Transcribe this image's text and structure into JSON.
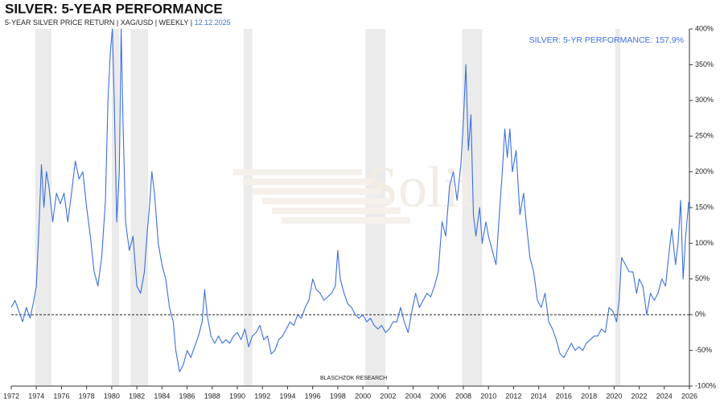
{
  "chart_data": {
    "type": "line",
    "title": "SILVER: 5-YEAR PERFORMANCE",
    "subtitle": "5-YEAR SILVER PRICE RETURN | XAG/USD | WEEKLY | ",
    "date": "12.12.2025",
    "annotation": "SILVER: 5-YR PERFORMANCE: 157,9%",
    "source": "BLASCHZOK  RESEARCH",
    "watermark": "Solit",
    "color": "#3b6fe0",
    "reference_line": 0,
    "shaded_periods": [
      [
        1973.9,
        1975.2
      ],
      [
        1980.0,
        1980.6
      ],
      [
        1981.5,
        1982.9
      ],
      [
        1990.5,
        1991.2
      ],
      [
        2000.2,
        2001.8
      ],
      [
        2007.9,
        2009.5
      ],
      [
        2020.1,
        2020.5
      ]
    ],
    "xlim": [
      1972,
      2026
    ],
    "xticks": [
      1972,
      1974,
      1976,
      1978,
      1980,
      1982,
      1984,
      1986,
      1988,
      1990,
      1992,
      1994,
      1996,
      1998,
      2000,
      2002,
      2004,
      2006,
      2008,
      2010,
      2012,
      2014,
      2016,
      2018,
      2020,
      2022,
      2024,
      2026
    ],
    "ylim": [
      -100,
      400
    ],
    "yticks": [
      {
        "value": -100,
        "label": "-100%"
      },
      {
        "value": -50,
        "label": "-50%"
      },
      {
        "value": 0,
        "label": "0%"
      },
      {
        "value": 50,
        "label": "50%"
      },
      {
        "value": 100,
        "label": "100%"
      },
      {
        "value": 150,
        "label": "150%"
      },
      {
        "value": 200,
        "label": "200%"
      },
      {
        "value": 250,
        "label": "250%"
      },
      {
        "value": 300,
        "label": "300%"
      },
      {
        "value": 350,
        "label": "350%"
      },
      {
        "value": 400,
        "label": "400%"
      }
    ],
    "x": [
      1972.0,
      1972.3,
      1972.6,
      1972.9,
      1973.2,
      1973.5,
      1973.8,
      1974.0,
      1974.2,
      1974.4,
      1974.6,
      1974.8,
      1975.0,
      1975.3,
      1975.6,
      1975.9,
      1976.2,
      1976.5,
      1976.8,
      1977.1,
      1977.4,
      1977.7,
      1978.0,
      1978.3,
      1978.6,
      1978.9,
      1979.2,
      1979.5,
      1979.7,
      1979.9,
      1980.05,
      1980.2,
      1980.4,
      1980.6,
      1980.75,
      1980.9,
      1981.1,
      1981.4,
      1981.7,
      1982.0,
      1982.3,
      1982.6,
      1982.8,
      1983.0,
      1983.2,
      1983.4,
      1983.7,
      1984.0,
      1984.3,
      1984.6,
      1984.9,
      1985.1,
      1985.4,
      1985.7,
      1986.0,
      1986.3,
      1986.6,
      1986.9,
      1987.2,
      1987.4,
      1987.6,
      1987.9,
      1988.2,
      1988.5,
      1988.8,
      1989.1,
      1989.4,
      1989.7,
      1990.0,
      1990.3,
      1990.6,
      1990.9,
      1991.2,
      1991.5,
      1991.8,
      1992.1,
      1992.4,
      1992.7,
      1993.0,
      1993.3,
      1993.6,
      1993.9,
      1994.2,
      1994.5,
      1994.8,
      1995.1,
      1995.4,
      1995.7,
      1996.0,
      1996.3,
      1996.6,
      1996.9,
      1997.2,
      1997.5,
      1997.8,
      1998.0,
      1998.2,
      1998.5,
      1998.8,
      1999.1,
      1999.4,
      1999.7,
      2000.0,
      2000.3,
      2000.6,
      2000.9,
      2001.2,
      2001.5,
      2001.8,
      2002.1,
      2002.4,
      2002.7,
      2003.0,
      2003.3,
      2003.6,
      2003.9,
      2004.2,
      2004.5,
      2004.8,
      2005.1,
      2005.4,
      2005.7,
      2006.0,
      2006.3,
      2006.6,
      2006.9,
      2007.2,
      2007.5,
      2007.8,
      2008.0,
      2008.2,
      2008.4,
      2008.6,
      2008.8,
      2009.0,
      2009.3,
      2009.5,
      2009.8,
      2010.0,
      2010.3,
      2010.6,
      2010.9,
      2011.1,
      2011.3,
      2011.5,
      2011.7,
      2011.9,
      2012.2,
      2012.5,
      2012.8,
      2013.0,
      2013.3,
      2013.6,
      2013.9,
      2014.2,
      2014.5,
      2014.8,
      2015.1,
      2015.4,
      2015.7,
      2016.0,
      2016.3,
      2016.6,
      2016.9,
      2017.2,
      2017.5,
      2017.8,
      2018.1,
      2018.4,
      2018.7,
      2019.0,
      2019.3,
      2019.6,
      2019.9,
      2020.2,
      2020.4,
      2020.6,
      2020.9,
      2021.2,
      2021.5,
      2021.8,
      2022.0,
      2022.3,
      2022.6,
      2022.9,
      2023.2,
      2023.5,
      2023.8,
      2024.1,
      2024.4,
      2024.6,
      2024.9,
      2025.1,
      2025.3,
      2025.5,
      2025.7,
      2025.95
    ],
    "values": [
      10,
      20,
      5,
      -10,
      10,
      -5,
      20,
      40,
      120,
      210,
      150,
      200,
      180,
      130,
      170,
      155,
      170,
      130,
      170,
      215,
      190,
      200,
      150,
      110,
      60,
      40,
      80,
      160,
      300,
      370,
      400,
      300,
      130,
      200,
      400,
      270,
      130,
      90,
      110,
      40,
      30,
      60,
      110,
      150,
      200,
      170,
      100,
      70,
      50,
      10,
      -10,
      -50,
      -80,
      -70,
      -50,
      -60,
      -45,
      -30,
      -10,
      35,
      0,
      -30,
      -40,
      -30,
      -40,
      -35,
      -40,
      -30,
      -25,
      -35,
      -20,
      -45,
      -30,
      -25,
      -15,
      -35,
      -30,
      -55,
      -50,
      -35,
      -30,
      -20,
      -10,
      -15,
      0,
      -5,
      10,
      20,
      50,
      35,
      30,
      20,
      25,
      30,
      40,
      90,
      50,
      30,
      15,
      10,
      0,
      -5,
      0,
      -10,
      -5,
      -15,
      -20,
      -15,
      -25,
      -20,
      -10,
      -10,
      10,
      -10,
      -25,
      5,
      30,
      10,
      20,
      30,
      25,
      40,
      60,
      130,
      110,
      180,
      200,
      160,
      210,
      270,
      350,
      230,
      280,
      140,
      110,
      150,
      100,
      130,
      110,
      90,
      70,
      150,
      200,
      260,
      220,
      260,
      200,
      230,
      140,
      170,
      130,
      80,
      60,
      20,
      10,
      30,
      -10,
      -20,
      -35,
      -55,
      -60,
      -50,
      -40,
      -50,
      -45,
      -50,
      -40,
      -35,
      -30,
      -30,
      -20,
      -25,
      10,
      5,
      -10,
      20,
      80,
      70,
      60,
      60,
      30,
      50,
      40,
      0,
      30,
      20,
      30,
      50,
      40,
      90,
      120,
      70,
      100,
      160,
      50,
      110,
      158
    ]
  }
}
